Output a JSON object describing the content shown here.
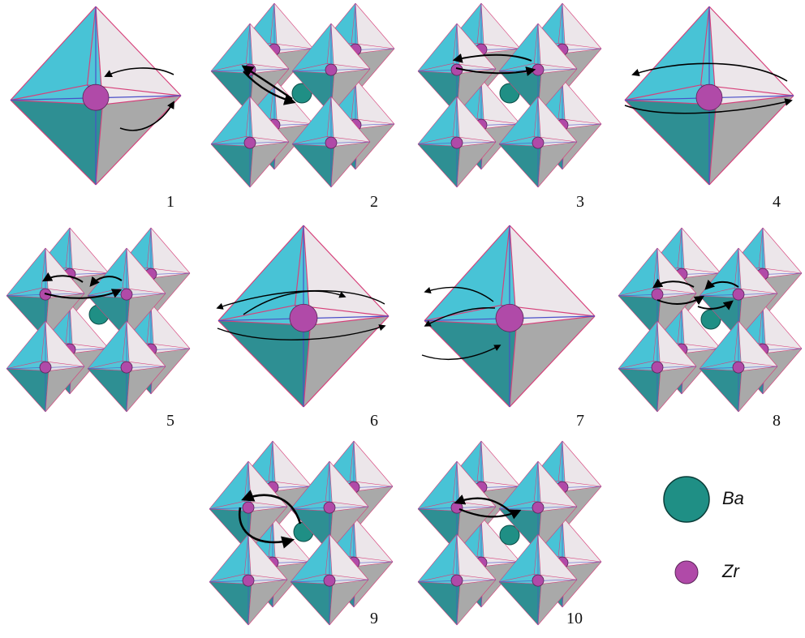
{
  "panels": [
    {
      "label": "1",
      "kind": "octahedron"
    },
    {
      "label": "2",
      "kind": "cluster"
    },
    {
      "label": "3",
      "kind": "cluster"
    },
    {
      "label": "4",
      "kind": "octahedron"
    },
    {
      "label": "5",
      "kind": "cluster"
    },
    {
      "label": "6",
      "kind": "octahedron"
    },
    {
      "label": "7",
      "kind": "octahedron"
    },
    {
      "label": "8",
      "kind": "cluster"
    },
    {
      "label": "9",
      "kind": "cluster"
    },
    {
      "label": "10",
      "kind": "cluster"
    }
  ],
  "legend": {
    "ba_label": "Ba",
    "zr_label": "Zr"
  },
  "colors": {
    "face_cyan": "#49c3d6",
    "face_gray": "#a9a9a9",
    "face_light": "#ece6ea",
    "face_dark_teal": "#2e8f93",
    "edge_pink": "#d6407a",
    "edge_blue": "#4a4fc8",
    "zr_fill": "#b04aa8",
    "ba_fill": "#1f8f85",
    "arrow": "#000000"
  }
}
